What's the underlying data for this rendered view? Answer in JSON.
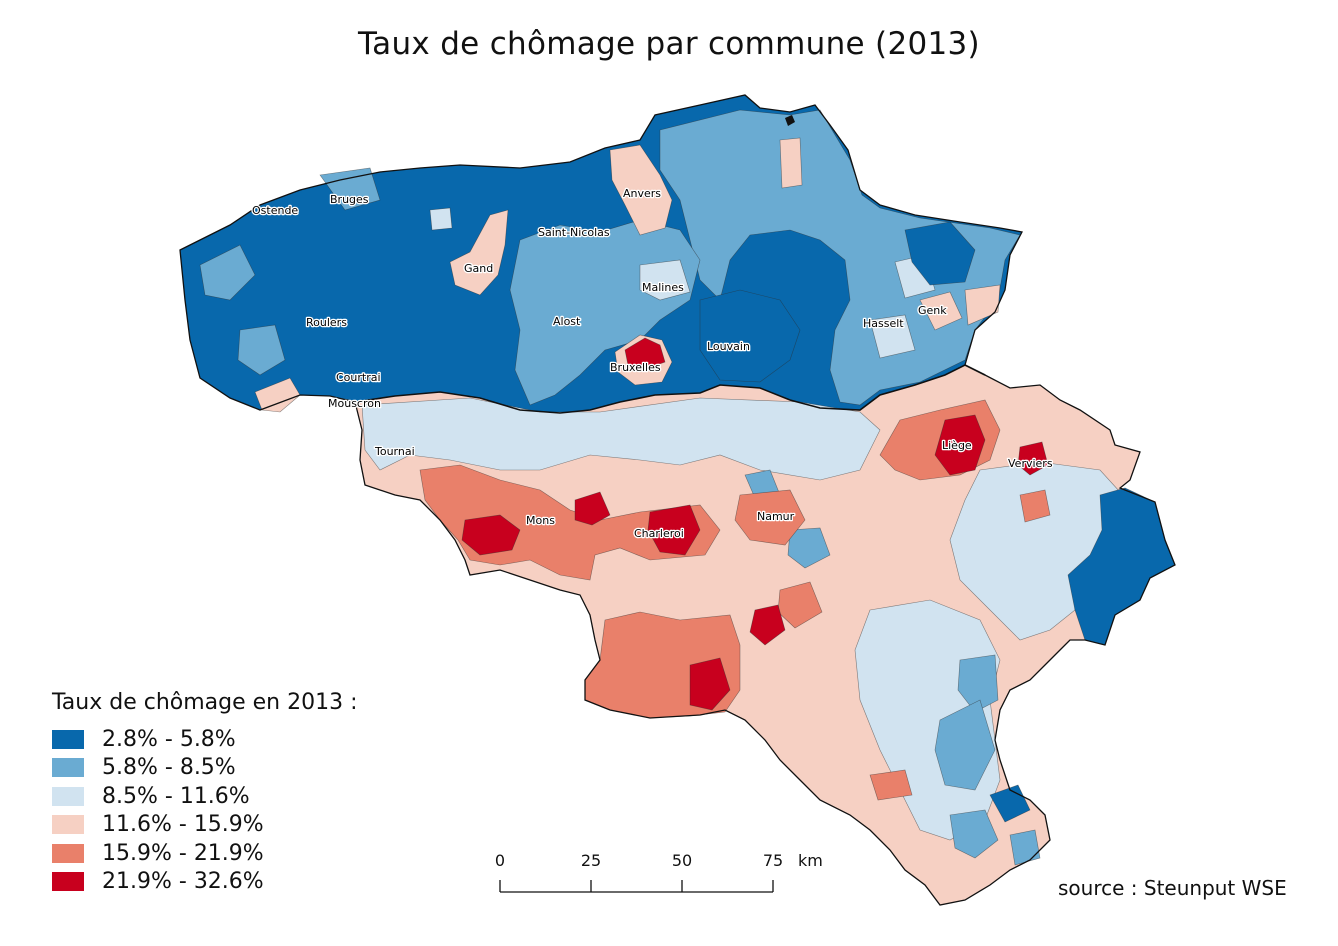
{
  "title": "Taux de chômage par commune (2013)",
  "legend": {
    "title": "Taux de chômage en 2013 :",
    "classes": [
      {
        "label": "2.8% - 5.8%",
        "color": "#0868ac"
      },
      {
        "label": "5.8% - 8.5%",
        "color": "#6aabd2"
      },
      {
        "label": "8.5% - 11.6%",
        "color": "#d1e3f0"
      },
      {
        "label": "11.6% - 15.9%",
        "color": "#f6d0c3"
      },
      {
        "label": "15.9% - 21.9%",
        "color": "#e9806a"
      },
      {
        "label": "21.9% - 32.6%",
        "color": "#c8001e"
      }
    ]
  },
  "scale_bar": {
    "ticks": [
      "0",
      "25",
      "50",
      "75"
    ],
    "unit": "km"
  },
  "cities": [
    {
      "name": "Ostende"
    },
    {
      "name": "Bruges"
    },
    {
      "name": "Anvers"
    },
    {
      "name": "Saint-Nicolas"
    },
    {
      "name": "Gand"
    },
    {
      "name": "Malines"
    },
    {
      "name": "Roulers"
    },
    {
      "name": "Alost"
    },
    {
      "name": "Hasselt"
    },
    {
      "name": "Genk"
    },
    {
      "name": "Louvain"
    },
    {
      "name": "Bruxelles"
    },
    {
      "name": "Courtrai"
    },
    {
      "name": "Mouscron"
    },
    {
      "name": "Tournai"
    },
    {
      "name": "Liège"
    },
    {
      "name": "Verviers"
    },
    {
      "name": "Mons"
    },
    {
      "name": "Charleroi"
    },
    {
      "name": "Namur"
    }
  ],
  "source": "source : Steunput WSE"
}
